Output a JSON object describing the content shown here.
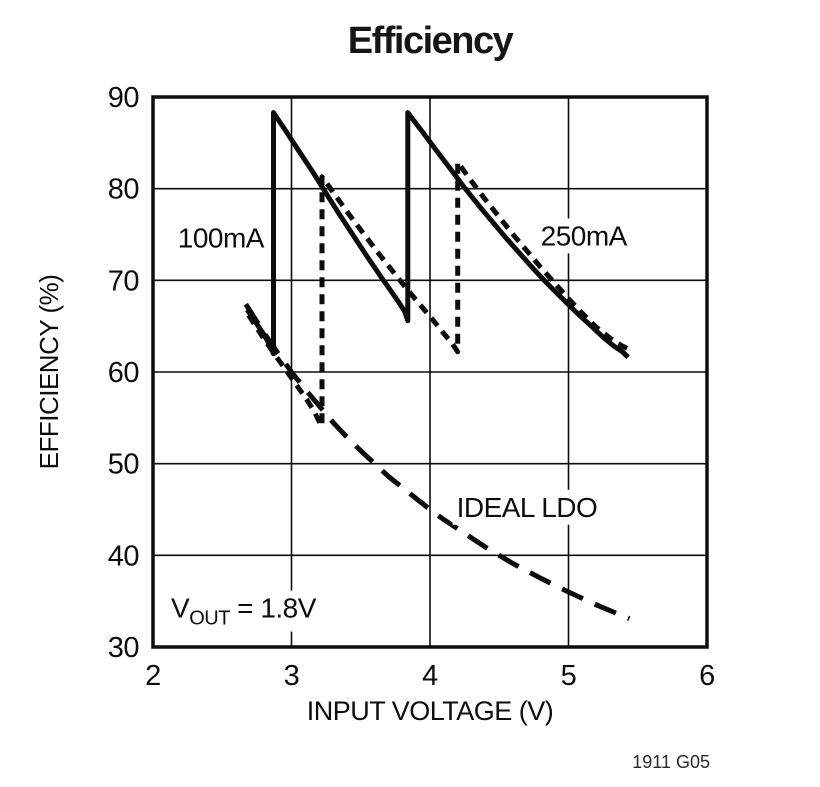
{
  "chart_data": {
    "type": "line",
    "title": "Efficiency",
    "caption": "1911 G05",
    "xlabel": "INPUT VOLTAGE (V)",
    "ylabel": "EFFICIENCY (%)",
    "xlim": [
      2,
      6
    ],
    "ylim": [
      30,
      90
    ],
    "xticks": [
      2,
      3,
      4,
      5,
      6
    ],
    "yticks": [
      30,
      40,
      50,
      60,
      70,
      80,
      90
    ],
    "grid": true,
    "ink_color": "#0d0d0d",
    "background_color": "#ffffff",
    "legend_position": "inline-annotations",
    "series": [
      {
        "name": "IDEAL LDO",
        "style": "longdash",
        "width": 5,
        "points": [
          [
            2.67,
            67.4
          ],
          [
            2.8,
            64.3
          ],
          [
            2.9,
            62.1
          ],
          [
            3.0,
            60.0
          ],
          [
            3.1,
            58.1
          ],
          [
            3.2,
            56.3
          ],
          [
            3.3,
            54.5
          ],
          [
            3.4,
            52.9
          ],
          [
            3.5,
            51.4
          ],
          [
            3.6,
            50.0
          ],
          [
            3.7,
            48.6
          ],
          [
            3.8,
            47.4
          ],
          [
            3.9,
            46.2
          ],
          [
            4.0,
            45.0
          ],
          [
            4.1,
            43.9
          ],
          [
            4.2,
            42.9
          ],
          [
            4.4,
            40.9
          ],
          [
            4.6,
            39.1
          ],
          [
            4.8,
            37.5
          ],
          [
            5.0,
            36.0
          ],
          [
            5.2,
            34.6
          ],
          [
            5.44,
            33.1
          ]
        ]
      },
      {
        "name": "250mA",
        "style": "dash",
        "width": 5,
        "points": [
          [
            2.69,
            66.2
          ],
          [
            2.78,
            64.1
          ],
          [
            2.87,
            62.1
          ],
          [
            2.96,
            60.2
          ],
          [
            3.04,
            58.5
          ],
          [
            3.11,
            57.0
          ],
          [
            3.16,
            55.8
          ],
          [
            3.2,
            54.6
          ],
          [
            3.22,
            54.1
          ],
          [
            3.22,
            81.3
          ],
          [
            3.32,
            79.2
          ],
          [
            3.42,
            77.1
          ],
          [
            3.52,
            75.1
          ],
          [
            3.62,
            73.1
          ],
          [
            3.72,
            71.2
          ],
          [
            3.82,
            69.3
          ],
          [
            3.92,
            67.5
          ],
          [
            4.02,
            65.7
          ],
          [
            4.1,
            64.2
          ],
          [
            4.16,
            63.1
          ],
          [
            4.2,
            62.2
          ],
          [
            4.2,
            82.9
          ],
          [
            4.3,
            80.8
          ],
          [
            4.4,
            78.8
          ],
          [
            4.5,
            76.9
          ],
          [
            4.6,
            75.0
          ],
          [
            4.7,
            73.2
          ],
          [
            4.8,
            71.4
          ],
          [
            4.9,
            69.7
          ],
          [
            5.0,
            68.0
          ],
          [
            5.1,
            66.4
          ],
          [
            5.2,
            64.9
          ],
          [
            5.3,
            63.7
          ],
          [
            5.38,
            62.9
          ],
          [
            5.46,
            62.3
          ]
        ]
      },
      {
        "name": "100mA",
        "style": "solid",
        "width": 5,
        "points": [
          [
            2.68,
            66.8
          ],
          [
            2.72,
            65.9
          ],
          [
            2.76,
            65.0
          ],
          [
            2.8,
            64.1
          ],
          [
            2.83,
            63.3
          ],
          [
            2.86,
            62.4
          ],
          [
            2.87,
            62.0
          ],
          [
            2.87,
            88.3
          ],
          [
            2.95,
            86.5
          ],
          [
            3.05,
            84.2
          ],
          [
            3.15,
            81.9
          ],
          [
            3.25,
            79.5
          ],
          [
            3.35,
            77.1
          ],
          [
            3.45,
            74.8
          ],
          [
            3.55,
            72.5
          ],
          [
            3.65,
            70.3
          ],
          [
            3.72,
            68.8
          ],
          [
            3.78,
            67.5
          ],
          [
            3.82,
            66.5
          ],
          [
            3.84,
            65.6
          ],
          [
            3.84,
            88.3
          ],
          [
            3.95,
            86.1
          ],
          [
            4.05,
            84.1
          ],
          [
            4.15,
            82.1
          ],
          [
            4.25,
            80.1
          ],
          [
            4.35,
            78.2
          ],
          [
            4.45,
            76.4
          ],
          [
            4.55,
            74.6
          ],
          [
            4.65,
            72.9
          ],
          [
            4.75,
            71.2
          ],
          [
            4.85,
            69.6
          ],
          [
            4.95,
            68.1
          ],
          [
            5.05,
            66.6
          ],
          [
            5.15,
            65.2
          ],
          [
            5.25,
            63.8
          ],
          [
            5.33,
            62.8
          ],
          [
            5.39,
            62.2
          ],
          [
            5.43,
            61.6
          ]
        ]
      }
    ],
    "annotations": [
      {
        "id": "label-100ma",
        "text_parts": [
          {
            "t": "100mA"
          }
        ],
        "x": 2.49,
        "y": 74.7,
        "anchor": "middle"
      },
      {
        "id": "label-250ma",
        "text_parts": [
          {
            "t": "250mA"
          }
        ],
        "x": 5.11,
        "y": 74.9,
        "anchor": "middle"
      },
      {
        "id": "label-ideal-ldo",
        "text_parts": [
          {
            "t": "IDEAL LDO"
          }
        ],
        "x": 4.7,
        "y": 45.3,
        "anchor": "middle"
      },
      {
        "id": "label-vout",
        "text_parts": [
          {
            "t": "V"
          },
          {
            "t": "OUT",
            "sub": true
          },
          {
            "t": " = 1.8V"
          }
        ],
        "x": 2.13,
        "y": 34.3,
        "anchor": "start"
      }
    ]
  }
}
